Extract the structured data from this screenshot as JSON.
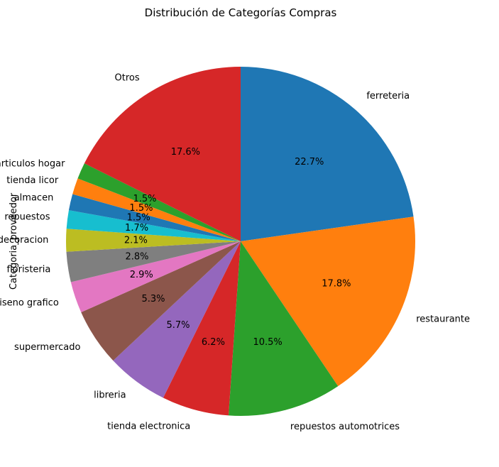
{
  "chart_data": {
    "type": "pie",
    "title": "Distribución de Categorías Compras",
    "ylabel": "Categoria_proveedor",
    "start_angle_deg": 90,
    "direction": "clockwise",
    "categories": [
      "ferreteria",
      "restaurante",
      "repuestos automotrices",
      "tienda electronica",
      "libreria",
      "supermercado",
      "diseno grafico",
      "floristeria",
      "decoracion",
      "repuestos",
      "almacen",
      "tienda licor",
      "articulos hogar",
      "Otros"
    ],
    "values": [
      22.7,
      17.8,
      10.5,
      6.2,
      5.7,
      5.3,
      2.9,
      2.8,
      2.1,
      1.7,
      1.5,
      1.5,
      1.5,
      17.6
    ],
    "value_labels": [
      "22.7%",
      "17.8%",
      "10.5%",
      "6.2%",
      "5.7%",
      "5.3%",
      "2.9%",
      "2.8%",
      "2.1%",
      "1.7%",
      "1.5%",
      "1.5%",
      "1.5%",
      "17.6%"
    ],
    "colors": [
      "#1f77b4",
      "#ff7f0e",
      "#2ca02c",
      "#d62728",
      "#9467bd",
      "#8c564b",
      "#e377c2",
      "#7f7f7f",
      "#bcbd22",
      "#17becf",
      "#1f77b4",
      "#ff7f0e",
      "#2ca02c",
      "#d62728"
    ],
    "legend": "none"
  }
}
